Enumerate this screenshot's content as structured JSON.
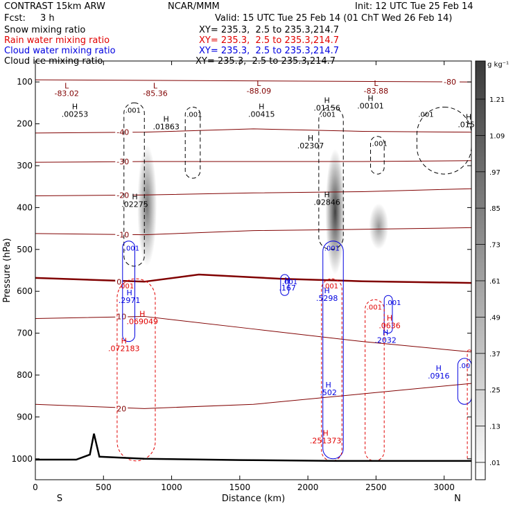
{
  "header": {
    "model": "CONTRAST 15km ARW",
    "org": "NCAR/MMM",
    "init": "Init: 12 UTC Tue 25 Feb 14",
    "fcst_label": "Fcst:",
    "fcst_value": "3 h",
    "valid": "Valid: 15 UTC Tue 25 Feb 14 (01 ChT Wed 26 Feb 14)"
  },
  "fields": [
    {
      "label": "Snow mixing ratio",
      "xy": "XY= 235.3,  2.5 to 235.3,214.7",
      "color": "#000000"
    },
    {
      "label": "Rain water mixing ratio",
      "xy": "XY= 235.3,  2.5 to 235.3,214.7",
      "color": "#e00000"
    },
    {
      "label": "Cloud water mixing ratio",
      "xy": "XY= 235.3,  2.5 to 235.3,214.7",
      "color": "#0000e0"
    },
    {
      "label": "Cloud ice mixing ratio",
      "xy": "XY= 235.3,  2.5 to 235.3,214.7",
      "color": "#000000"
    }
  ],
  "chart_data": {
    "type": "cross-section contour",
    "xlabel": "Distance (km)",
    "ylabel": "Pressure (hPa)",
    "xlim": [
      0,
      3200
    ],
    "ylim": [
      1050,
      50
    ],
    "x_ticks": [
      0,
      500,
      1000,
      1500,
      2000,
      2500,
      3000
    ],
    "y_ticks": [
      100,
      200,
      300,
      400,
      500,
      600,
      700,
      800,
      900,
      1000
    ],
    "x_end_labels": {
      "left": "S",
      "right": "N"
    },
    "colorbar": {
      "unit": "g kg⁻¹",
      "ticks": [
        1.21,
        1.09,
        0.97,
        0.85,
        0.73,
        0.61,
        0.49,
        0.37,
        0.25,
        0.13,
        0.01
      ],
      "tick_labels": [
        "1.21",
        "1.09",
        ".97",
        ".85",
        ".73",
        ".61",
        ".49",
        ".37",
        ".25",
        ".13",
        ".01"
      ]
    },
    "snow_shading_columns": [
      {
        "x": 820,
        "p_top": 250,
        "p_bottom": 540,
        "max": 0.6
      },
      {
        "x": 2200,
        "p_top": 260,
        "p_bottom": 560,
        "max": 1.2
      },
      {
        "x": 2520,
        "p_top": 390,
        "p_bottom": 500,
        "max": 0.25
      }
    ],
    "temperature_isotherms": [
      {
        "label": "-80",
        "points": [
          [
            0,
            95
          ],
          [
            3200,
            100
          ]
        ]
      },
      {
        "label": "-40",
        "points": [
          [
            0,
            222
          ],
          [
            800,
            220
          ],
          [
            1600,
            212
          ],
          [
            2400,
            218
          ],
          [
            3200,
            220
          ]
        ]
      },
      {
        "label": "-30",
        "points": [
          [
            0,
            292
          ],
          [
            800,
            290
          ],
          [
            1600,
            290
          ],
          [
            2400,
            290
          ],
          [
            3200,
            288
          ]
        ]
      },
      {
        "label": "-20",
        "points": [
          [
            0,
            372
          ],
          [
            800,
            370
          ],
          [
            1600,
            365
          ],
          [
            2400,
            362
          ],
          [
            3200,
            355
          ]
        ]
      },
      {
        "label": "-10",
        "points": [
          [
            0,
            462
          ],
          [
            800,
            465
          ],
          [
            1600,
            455
          ],
          [
            2400,
            452
          ],
          [
            3200,
            448
          ]
        ]
      },
      {
        "label": "0",
        "points": [
          [
            0,
            568
          ],
          [
            800,
            577
          ],
          [
            1200,
            560
          ],
          [
            1800,
            570
          ],
          [
            2400,
            576
          ],
          [
            3200,
            580
          ]
        ],
        "bold": true
      },
      {
        "label": "10",
        "points": [
          [
            0,
            665
          ],
          [
            800,
            660
          ],
          [
            1600,
            690
          ],
          [
            2400,
            720
          ],
          [
            3200,
            745
          ]
        ]
      },
      {
        "label": "20",
        "points": [
          [
            0,
            870
          ],
          [
            800,
            880
          ],
          [
            1600,
            870
          ],
          [
            2400,
            845
          ],
          [
            3200,
            820
          ]
        ]
      }
    ],
    "terrain_profile": [
      [
        0,
        1002
      ],
      [
        300,
        1002
      ],
      [
        400,
        990
      ],
      [
        430,
        940
      ],
      [
        470,
        995
      ],
      [
        800,
        1000
      ],
      [
        1500,
        1003
      ],
      [
        2200,
        1005
      ],
      [
        3200,
        1005
      ]
    ],
    "rain_water_contours": [
      {
        "label": ".001",
        "x_range": [
          600,
          880
        ],
        "p_range": [
          570,
          1005
        ]
      },
      {
        "label": ".001",
        "x_range": [
          2100,
          2250
        ],
        "p_range": [
          570,
          1005
        ]
      },
      {
        "label": ".001",
        "x_range": [
          2420,
          2560
        ],
        "p_range": [
          620,
          1005
        ]
      },
      {
        "label": ".001",
        "x_range": [
          3170,
          3200
        ],
        "p_range": [
          740,
          1005
        ]
      }
    ],
    "cloud_water_contours": [
      {
        "label": ".001",
        "x_range": [
          640,
          730
        ],
        "p_range": [
          480,
          720
        ]
      },
      {
        "label": ".001",
        "x_range": [
          2110,
          2260
        ],
        "p_range": [
          480,
          1000
        ]
      },
      {
        "label": ".001",
        "x_range": [
          2560,
          2620
        ],
        "p_range": [
          610,
          700
        ]
      },
      {
        "label": ".001",
        "x_range": [
          3100,
          3200
        ],
        "p_range": [
          760,
          870
        ]
      },
      {
        "label": ".001",
        "x_range": [
          1800,
          1860
        ],
        "p_range": [
          560,
          610
        ]
      }
    ],
    "cloud_ice_contours": [
      {
        "label": ".001",
        "x_range": [
          650,
          800
        ],
        "p_range": [
          150,
          540
        ]
      },
      {
        "label": ".001",
        "x_range": [
          1100,
          1210
        ],
        "p_range": [
          160,
          330
        ]
      },
      {
        "label": ".001",
        "x_range": [
          2080,
          2260
        ],
        "p_range": [
          160,
          500
        ]
      },
      {
        "label": ".001",
        "x_range": [
          2460,
          2560
        ],
        "p_range": [
          230,
          320
        ]
      },
      {
        "label": ".001",
        "x_range": [
          2800,
          3200
        ],
        "p_range": [
          160,
          320
        ]
      }
    ],
    "high_low_labels": [
      {
        "kind": "L",
        "value": "-83.02",
        "x": 230,
        "p": 115,
        "color": "#800000"
      },
      {
        "kind": "L",
        "value": "-85.36",
        "x": 880,
        "p": 115,
        "color": "#800000"
      },
      {
        "kind": "L",
        "value": "-88.09",
        "x": 1640,
        "p": 110,
        "color": "#800000"
      },
      {
        "kind": "L",
        "value": "-83.88",
        "x": 2500,
        "p": 110,
        "color": "#800000"
      },
      {
        "kind": "H",
        "value": ".00253",
        "x": 290,
        "p": 165,
        "color": "#000000"
      },
      {
        "kind": "H",
        "value": ".01863",
        "x": 960,
        "p": 195,
        "color": "#000000"
      },
      {
        "kind": "H",
        "value": ".00415",
        "x": 1660,
        "p": 165,
        "color": "#000000"
      },
      {
        "kind": "H",
        "value": ".01156",
        "x": 2140,
        "p": 150,
        "color": "#000000"
      },
      {
        "kind": "H",
        "value": ".00101",
        "x": 2460,
        "p": 145,
        "color": "#000000"
      },
      {
        "kind": "H",
        "value": ".0159",
        "x": 3180,
        "p": 190,
        "color": "#000000"
      },
      {
        "kind": "H",
        "value": ".02307",
        "x": 2020,
        "p": 240,
        "color": "#000000"
      },
      {
        "kind": "H",
        "value": ".02275",
        "x": 730,
        "p": 380,
        "color": "#000000"
      },
      {
        "kind": "H",
        "value": ".02846",
        "x": 2140,
        "p": 375,
        "color": "#000000"
      },
      {
        "kind": "H",
        "value": ".167",
        "x": 1850,
        "p": 580,
        "color": "#0000e0"
      },
      {
        "kind": "H",
        "value": ".2971",
        "x": 690,
        "p": 610,
        "color": "#0000e0"
      },
      {
        "kind": "H",
        "value": ".069049",
        "x": 785,
        "p": 660,
        "color": "#e00000"
      },
      {
        "kind": "H",
        "value": ".5298",
        "x": 2140,
        "p": 605,
        "color": "#0000e0"
      },
      {
        "kind": "H",
        "value": ".0636",
        "x": 2600,
        "p": 670,
        "color": "#e00000"
      },
      {
        "kind": "H",
        "value": ".2032",
        "x": 2570,
        "p": 705,
        "color": "#0000e0"
      },
      {
        "kind": "H",
        "value": ".072183",
        "x": 650,
        "p": 725,
        "color": "#e00000"
      },
      {
        "kind": "H",
        "value": ".0916",
        "x": 2960,
        "p": 790,
        "color": "#0000e0"
      },
      {
        "kind": "H",
        "value": ".502",
        "x": 2150,
        "p": 830,
        "color": "#0000e0"
      },
      {
        "kind": "H",
        "value": ".251373",
        "x": 2130,
        "p": 945,
        "color": "#e00000"
      }
    ]
  }
}
